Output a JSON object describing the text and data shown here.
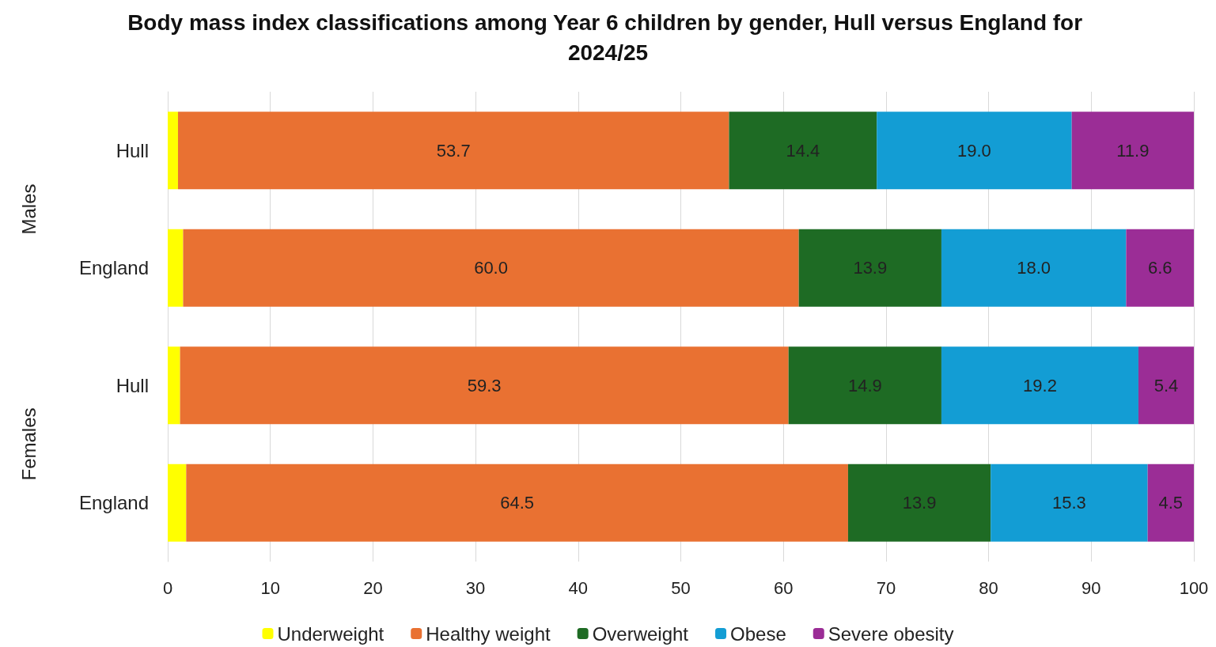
{
  "chart_data": {
    "type": "bar",
    "orientation": "horizontal",
    "stacked": true,
    "title": "Body mass index classifications among Year 6 children by gender, Hull versus England for 2024/25",
    "categories": [
      "Hull",
      "England",
      "Hull",
      "England"
    ],
    "annotations": [
      "Males",
      "Females"
    ],
    "series": [
      {
        "name": "Underweight",
        "color": "#ffff00",
        "values": [
          1.0,
          1.5,
          1.2,
          1.8
        ],
        "value_labels": [
          null,
          null,
          null,
          null
        ]
      },
      {
        "name": "Healthy weight",
        "color": "#e97132",
        "values": [
          53.7,
          60.0,
          59.3,
          64.5
        ],
        "value_labels": [
          "53.7",
          "60.0",
          "59.3",
          "64.5"
        ]
      },
      {
        "name": "Overweight",
        "color": "#1e6b24",
        "values": [
          14.4,
          13.9,
          14.9,
          13.9
        ],
        "value_labels": [
          "14.4",
          "13.9",
          "14.9",
          "13.9"
        ]
      },
      {
        "name": "Obese",
        "color": "#139dd4",
        "values": [
          19.0,
          18.0,
          19.2,
          15.3
        ],
        "value_labels": [
          "19.0",
          "18.0",
          "19.2",
          "15.3"
        ]
      },
      {
        "name": "Severe obesity",
        "color": "#9b2d96",
        "values": [
          11.9,
          6.6,
          5.4,
          4.5
        ],
        "value_labels": [
          "11.9",
          "6.6",
          "5.4",
          "4.5"
        ]
      }
    ],
    "xlim": [
      0,
      100
    ],
    "xticks": [
      0,
      10,
      20,
      30,
      40,
      50,
      60,
      70,
      80,
      90,
      100
    ],
    "grid": "x",
    "legend": "bottom"
  }
}
